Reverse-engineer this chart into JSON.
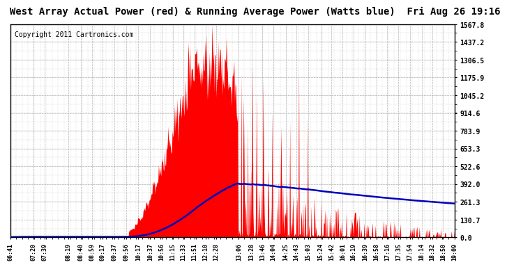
{
  "title": "West Array Actual Power (red) & Running Average Power (Watts blue)  Fri Aug 26 19:16",
  "copyright": "Copyright 2011 Cartronics.com",
  "yticks": [
    0.0,
    130.7,
    261.3,
    392.0,
    522.6,
    653.3,
    783.9,
    914.6,
    1045.2,
    1175.9,
    1306.5,
    1437.2,
    1567.8
  ],
  "ymax": 1567.8,
  "bg_color": "#ffffff",
  "fill_color": "#ff0000",
  "avg_color": "#0000bb",
  "grid_color": "#aaaaaa",
  "xtick_labels": [
    "06:41",
    "07:20",
    "07:39",
    "08:19",
    "08:40",
    "08:59",
    "09:17",
    "09:37",
    "09:56",
    "10:17",
    "10:37",
    "10:56",
    "11:15",
    "11:33",
    "11:51",
    "12:10",
    "12:28",
    "13:06",
    "13:28",
    "13:46",
    "14:04",
    "14:25",
    "14:43",
    "15:03",
    "15:24",
    "15:42",
    "16:01",
    "16:19",
    "16:39",
    "16:58",
    "17:16",
    "17:35",
    "17:54",
    "18:14",
    "18:32",
    "18:50",
    "19:09"
  ],
  "n_samples": 750,
  "title_fontsize": 10,
  "tick_fontsize": 7,
  "copyright_fontsize": 7
}
